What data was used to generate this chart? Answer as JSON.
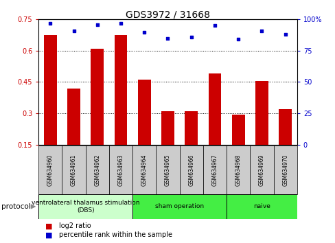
{
  "title": "GDS3972 / 31668",
  "samples": [
    "GSM634960",
    "GSM634961",
    "GSM634962",
    "GSM634963",
    "GSM634964",
    "GSM634965",
    "GSM634966",
    "GSM634967",
    "GSM634968",
    "GSM634969",
    "GSM634970"
  ],
  "log2_ratio": [
    0.675,
    0.42,
    0.61,
    0.675,
    0.46,
    0.31,
    0.31,
    0.49,
    0.295,
    0.455,
    0.32
  ],
  "percentile_rank": [
    97,
    91,
    96,
    97,
    90,
    85,
    86,
    95,
    84,
    91,
    88
  ],
  "ylim_left": [
    0.15,
    0.75
  ],
  "ylim_right": [
    0,
    100
  ],
  "yticks_left": [
    0.15,
    0.3,
    0.45,
    0.6,
    0.75
  ],
  "yticks_right": [
    0,
    25,
    50,
    75,
    100
  ],
  "bar_color": "#cc0000",
  "dot_color": "#0000cc",
  "grid_color": "#000000",
  "protocol_groups": [
    {
      "label": "ventrolateral thalamus stimulation\n(DBS)",
      "start": 0,
      "end": 3,
      "color": "#ccffcc"
    },
    {
      "label": "sham operation",
      "start": 4,
      "end": 7,
      "color": "#44ee44"
    },
    {
      "label": "naive",
      "start": 8,
      "end": 10,
      "color": "#44ee44"
    }
  ],
  "legend_bar_label": "log2 ratio",
  "legend_dot_label": "percentile rank within the sample",
  "ylabel_left_color": "#cc0000",
  "ylabel_right_color": "#0000cc",
  "title_fontsize": 10,
  "tick_fontsize": 7,
  "sample_fontsize": 5.5,
  "proto_fontsize": 6.5,
  "legend_fontsize": 7
}
